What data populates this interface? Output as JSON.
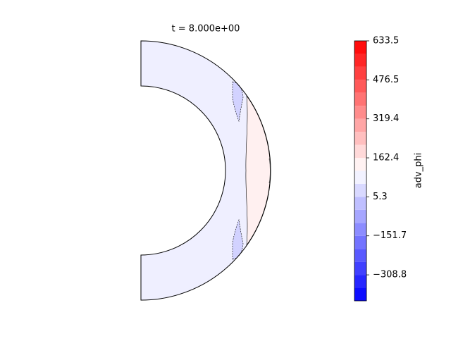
{
  "chart_data": {
    "type": "contour",
    "title": "t = 8.000e+00",
    "colorbar": {
      "label": "adv_phi",
      "ylim": [
        -413.5,
        633.5
      ],
      "levels": [
        -413.5,
        -361.15,
        -308.8,
        -256.45,
        -204.1,
        -151.75,
        -99.4,
        -47.05,
        5.3,
        57.65,
        110.0,
        162.35,
        214.7,
        267.05,
        319.4,
        371.75,
        424.1,
        476.45,
        528.8,
        581.15,
        633.5
      ],
      "yticks": [
        {
          "value": -308.8,
          "label": "−308.8"
        },
        {
          "value": -151.7,
          "label": "−151.7"
        },
        5.3,
        162.4,
        319.4,
        476.5,
        633.5
      ]
    }
  }
}
